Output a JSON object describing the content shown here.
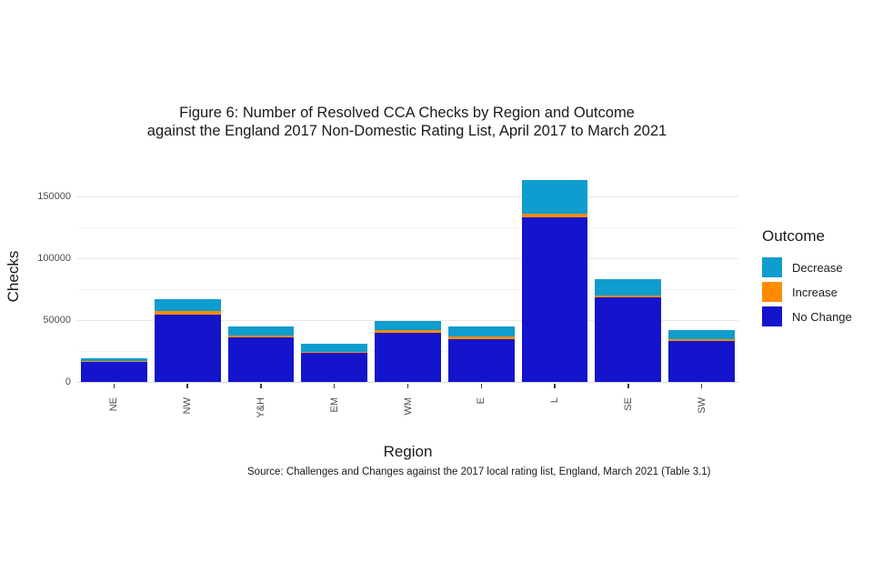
{
  "figure": {
    "title": "Figure 6: Number of Resolved CCA Checks by Region and Outcome\nagainst the England 2017 Non-Domestic Rating List, April 2017 to March 2021",
    "source": "Source: Challenges and Changes against the 2017 local rating list, England, March 2021 (Table 3.1)"
  },
  "chart_data": {
    "type": "bar",
    "stacked": true,
    "title": "Figure 6: Number of Resolved CCA Checks by Region and Outcome against the England 2017 Non-Domestic Rating List, April 2017 to March 2021",
    "xlabel": "Region",
    "ylabel": "Checks",
    "categories": [
      "NE",
      "NW",
      "Y&H",
      "EM",
      "WM",
      "E",
      "L",
      "SE",
      "SW"
    ],
    "series": [
      {
        "name": "No Change",
        "color": "#1414cc",
        "values": [
          16400,
          54600,
          36000,
          23300,
          39900,
          34800,
          133300,
          68100,
          32900
        ]
      },
      {
        "name": "Increase",
        "color": "#ff8c00",
        "values": [
          300,
          2500,
          1700,
          1200,
          1800,
          2000,
          2900,
          1900,
          1900
        ]
      },
      {
        "name": "Decrease",
        "color": "#0f9cce",
        "values": [
          2600,
          9800,
          6900,
          6200,
          7800,
          7900,
          27200,
          13200,
          7400
        ]
      }
    ],
    "stack_order_bottom_to_top": [
      "No Change",
      "Increase",
      "Decrease"
    ],
    "y_ticks": [
      0,
      50000,
      100000,
      150000
    ],
    "y_tick_labels": [
      "0",
      "50000",
      "100000",
      "150000"
    ],
    "y_minor_ticks": [
      25000,
      75000,
      125000
    ],
    "ylim": [
      0,
      172800
    ],
    "grid": "horizontal major and minor, light gray on white panel",
    "legend": {
      "title": "Outcome",
      "position": "right",
      "items": [
        {
          "label": "Decrease",
          "series": "Decrease"
        },
        {
          "label": "Increase",
          "series": "Increase"
        },
        {
          "label": "No Change",
          "series": "No Change"
        }
      ]
    }
  },
  "colors": {
    "background": "#ffffff",
    "no_change": "#1414cc",
    "increase": "#ff8c00",
    "decrease": "#0f9cce",
    "major_grid": "#e8e8e8",
    "minor_grid": "#f4f4f4",
    "axis_line": "#d9d9d9",
    "tick_text": "#4d4d4d",
    "text": "#1a1a1a"
  }
}
